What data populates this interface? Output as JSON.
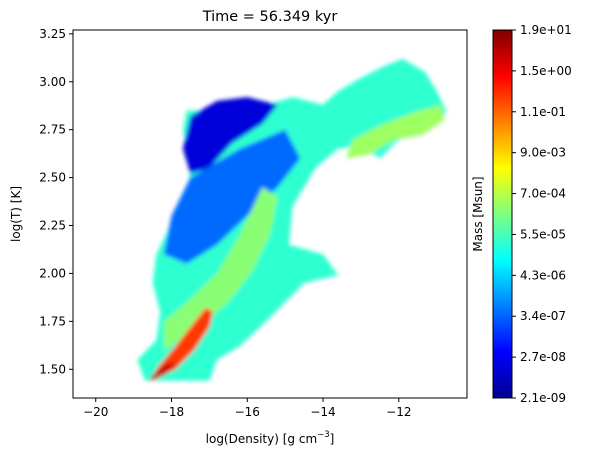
{
  "chart_data": {
    "type": "heatmap",
    "title": "Time = 56.349 kyr",
    "xlabel": "log(Density) [g cm",
    "xlabel_sup": "−3",
    "xlabel_close": "]",
    "ylabel": "log(T) [K]",
    "xlim": [
      -20.6,
      -10.2
    ],
    "ylim": [
      1.35,
      3.27
    ],
    "xticks": [
      -20,
      -18,
      -16,
      -14,
      -12
    ],
    "xtick_labels": [
      "−20",
      "−18",
      "−16",
      "−14",
      "−12"
    ],
    "yticks": [
      1.5,
      1.75,
      2.0,
      2.25,
      2.5,
      2.75,
      3.0,
      3.25
    ],
    "ytick_labels": [
      "1.50",
      "1.75",
      "2.00",
      "2.25",
      "2.50",
      "2.75",
      "3.00",
      "3.25"
    ],
    "grid": false,
    "colormap": "jet",
    "colorbar": {
      "label": "Mass [Msun]",
      "tick_labels": [
        "2.1e-09",
        "2.7e-08",
        "3.4e-07",
        "4.3e-06",
        "5.5e-05",
        "7.0e-04",
        "9.0e-03",
        "1.1e-01",
        "1.5e+00",
        "1.9e+01"
      ],
      "log_range": [
        -8.68,
        1.28
      ]
    },
    "regions": [
      {
        "name": "overall-distribution",
        "boundary": [
          [
            -18.7,
            1.44
          ],
          [
            -17.0,
            1.44
          ],
          [
            -16.8,
            1.55
          ],
          [
            -16.2,
            1.62
          ],
          [
            -15.5,
            1.75
          ],
          [
            -15.0,
            1.85
          ],
          [
            -14.5,
            1.95
          ],
          [
            -13.6,
            1.99
          ],
          [
            -14.0,
            2.1
          ],
          [
            -14.9,
            2.15
          ],
          [
            -14.8,
            2.35
          ],
          [
            -14.2,
            2.55
          ],
          [
            -13.6,
            2.65
          ],
          [
            -13.0,
            2.67
          ],
          [
            -12.5,
            2.6
          ],
          [
            -12.0,
            2.7
          ],
          [
            -11.5,
            2.72
          ],
          [
            -10.9,
            2.79
          ],
          [
            -10.75,
            2.85
          ],
          [
            -11.0,
            2.95
          ],
          [
            -11.3,
            3.05
          ],
          [
            -11.9,
            3.12
          ],
          [
            -12.4,
            3.08
          ],
          [
            -13.0,
            3.02
          ],
          [
            -13.6,
            2.95
          ],
          [
            -14.0,
            2.88
          ],
          [
            -14.8,
            2.92
          ],
          [
            -15.5,
            2.88
          ],
          [
            -16.0,
            2.92
          ],
          [
            -16.8,
            2.85
          ],
          [
            -17.6,
            2.85
          ],
          [
            -17.7,
            2.75
          ],
          [
            -17.5,
            2.55
          ],
          [
            -17.6,
            2.4
          ],
          [
            -17.9,
            2.3
          ],
          [
            -18.4,
            2.1
          ],
          [
            -18.5,
            1.95
          ],
          [
            -18.3,
            1.8
          ],
          [
            -18.4,
            1.65
          ],
          [
            -18.9,
            1.55
          ]
        ],
        "mass_log": -4.5
      },
      {
        "name": "upper-left-blue",
        "boundary": [
          [
            -17.7,
            2.65
          ],
          [
            -17.5,
            2.82
          ],
          [
            -16.8,
            2.9
          ],
          [
            -16.0,
            2.92
          ],
          [
            -15.2,
            2.88
          ],
          [
            -15.6,
            2.78
          ],
          [
            -16.4,
            2.68
          ],
          [
            -17.0,
            2.55
          ],
          [
            -17.5,
            2.52
          ]
        ],
        "mass_log": -7.8
      },
      {
        "name": "upper-cyan-band",
        "boundary": [
          [
            -17.5,
            2.5
          ],
          [
            -16.2,
            2.65
          ],
          [
            -15.0,
            2.75
          ],
          [
            -14.6,
            2.6
          ],
          [
            -15.2,
            2.45
          ],
          [
            -16.0,
            2.3
          ],
          [
            -16.8,
            2.15
          ],
          [
            -17.6,
            2.05
          ],
          [
            -18.2,
            2.1
          ],
          [
            -18.0,
            2.3
          ]
        ],
        "mass_log": -6.4
      },
      {
        "name": "right-yellow-arm",
        "boundary": [
          [
            -13.2,
            2.7
          ],
          [
            -12.4,
            2.78
          ],
          [
            -11.6,
            2.84
          ],
          [
            -10.9,
            2.88
          ],
          [
            -10.8,
            2.8
          ],
          [
            -11.4,
            2.72
          ],
          [
            -12.1,
            2.7
          ],
          [
            -12.8,
            2.62
          ],
          [
            -13.4,
            2.6
          ]
        ],
        "mass_log": -3.4
      },
      {
        "name": "central-green-diagonal",
        "boundary": [
          [
            -18.2,
            1.6
          ],
          [
            -17.4,
            1.7
          ],
          [
            -16.5,
            1.85
          ],
          [
            -15.9,
            2.0
          ],
          [
            -15.4,
            2.2
          ],
          [
            -15.2,
            2.4
          ],
          [
            -15.6,
            2.45
          ],
          [
            -16.2,
            2.2
          ],
          [
            -16.8,
            2.0
          ],
          [
            -17.6,
            1.85
          ],
          [
            -18.2,
            1.75
          ]
        ],
        "mass_log": -3.6
      },
      {
        "name": "dense-orange-ridge",
        "boundary": [
          [
            -18.5,
            1.44
          ],
          [
            -17.9,
            1.5
          ],
          [
            -17.4,
            1.6
          ],
          [
            -17.0,
            1.72
          ],
          [
            -16.9,
            1.8
          ],
          [
            -17.1,
            1.82
          ],
          [
            -17.5,
            1.72
          ],
          [
            -17.9,
            1.62
          ],
          [
            -18.4,
            1.5
          ]
        ],
        "mass_log": -0.5
      },
      {
        "name": "dense-red-core",
        "boundary": [
          [
            -18.6,
            1.44
          ],
          [
            -18.2,
            1.47
          ],
          [
            -17.9,
            1.53
          ],
          [
            -18.1,
            1.53
          ],
          [
            -18.5,
            1.47
          ]
        ],
        "mass_log": 0.6
      }
    ]
  }
}
